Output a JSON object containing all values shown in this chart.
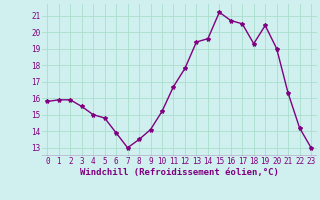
{
  "x": [
    0,
    1,
    2,
    3,
    4,
    5,
    6,
    7,
    8,
    9,
    10,
    11,
    12,
    13,
    14,
    15,
    16,
    17,
    18,
    19,
    20,
    21,
    22,
    23
  ],
  "y": [
    15.8,
    15.9,
    15.9,
    15.5,
    15.0,
    14.8,
    13.9,
    13.0,
    13.5,
    14.1,
    15.2,
    16.7,
    17.8,
    19.4,
    19.6,
    21.2,
    20.7,
    20.5,
    19.3,
    20.4,
    19.0,
    16.3,
    14.2,
    13.0
  ],
  "line_color": "#800080",
  "marker": "*",
  "marker_size": 3,
  "bg_color": "#cff0ee",
  "grid_color": "#aaddcc",
  "xlabel": "Windchill (Refroidissement éolien,°C)",
  "xlabel_color": "#800080",
  "tick_color": "#800080",
  "ylim": [
    12.5,
    21.7
  ],
  "xlim": [
    -0.5,
    23.5
  ],
  "yticks": [
    13,
    14,
    15,
    16,
    17,
    18,
    19,
    20,
    21
  ],
  "xticks": [
    0,
    1,
    2,
    3,
    4,
    5,
    6,
    7,
    8,
    9,
    10,
    11,
    12,
    13,
    14,
    15,
    16,
    17,
    18,
    19,
    20,
    21,
    22,
    23
  ],
  "tick_fontsize": 5.5,
  "xlabel_fontsize": 6.5,
  "linewidth": 1.0
}
